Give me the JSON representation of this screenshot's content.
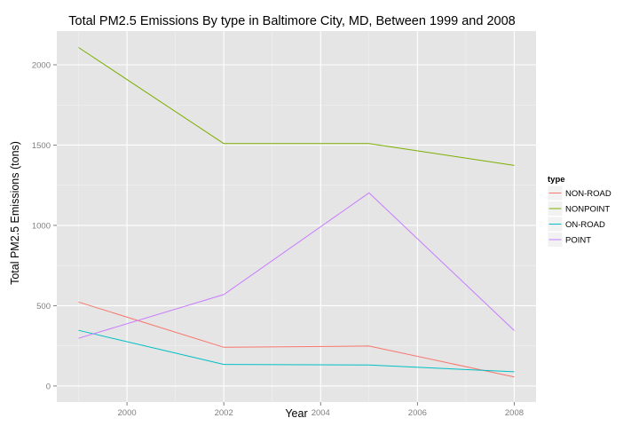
{
  "chart_data": {
    "type": "line",
    "title": "Total PM2.5 Emissions By type in Baltimore City, MD, Between 1999 and 2008",
    "xlabel": "Year",
    "ylabel": "Total PM2.5 Emissions (tons)",
    "x": [
      1999,
      2002,
      2005,
      2008
    ],
    "xlim": [
      1998.55,
      2008.45
    ],
    "ylim": [
      -100,
      2210
    ],
    "xticks": [
      2000,
      2002,
      2004,
      2006,
      2008
    ],
    "yticks": [
      0,
      500,
      1000,
      1500,
      2000
    ],
    "x_minor": [
      1999,
      2001,
      2003,
      2005,
      2007
    ],
    "y_minor": [
      250,
      750,
      1250,
      1750
    ],
    "grid": true,
    "panel_background": "#e5e5e5",
    "legend": {
      "title": "type",
      "position": "right"
    },
    "series": [
      {
        "name": "NON-ROAD",
        "color": "#f8766d",
        "values": [
          522.9,
          240.8,
          248.9,
          55.8
        ]
      },
      {
        "name": "NONPOINT",
        "color": "#7cae00",
        "values": [
          2107.6,
          1509.5,
          1509.5,
          1373.2
        ]
      },
      {
        "name": "ON-ROAD",
        "color": "#00bfc4",
        "values": [
          346.8,
          134.3,
          130.4,
          88.3
        ]
      },
      {
        "name": "POINT",
        "color": "#c77cff",
        "values": [
          296.8,
          569.3,
          1202.5,
          345.0
        ]
      }
    ]
  }
}
